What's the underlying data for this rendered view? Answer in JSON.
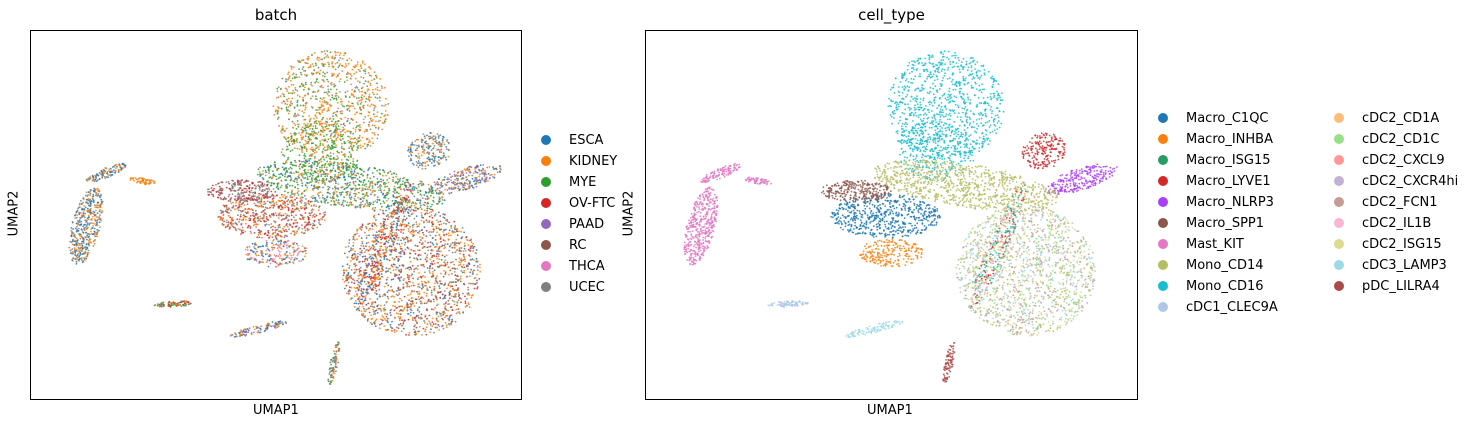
{
  "chart_data": [
    {
      "type": "scatter",
      "title": "batch",
      "xlabel": "UMAP1",
      "ylabel": "UMAP2",
      "xticks": [],
      "yticks": [],
      "grid": false,
      "legend_placement": "right",
      "series": [
        {
          "name": "ESCA",
          "color": "#1f77b4"
        },
        {
          "name": "KIDNEY",
          "color": "#ff7f0e"
        },
        {
          "name": "MYE",
          "color": "#2ca02c"
        },
        {
          "name": "OV-FTC",
          "color": "#d62728"
        },
        {
          "name": "PAAD",
          "color": "#9467bd"
        },
        {
          "name": "RC",
          "color": "#8c564b"
        },
        {
          "name": "THCA",
          "color": "#e377c2"
        },
        {
          "name": "UCEC",
          "color": "#7f7f7f"
        }
      ]
    },
    {
      "type": "scatter",
      "title": "cell_type",
      "xlabel": "UMAP1",
      "ylabel": "UMAP2",
      "xticks": [],
      "yticks": [],
      "grid": false,
      "legend_placement": "right",
      "series": [
        {
          "name": "Macro_C1QC",
          "color": "#1f77b4"
        },
        {
          "name": "Macro_INHBA",
          "color": "#ff7f0e"
        },
        {
          "name": "Macro_ISG15",
          "color": "#279e68"
        },
        {
          "name": "Macro_LYVE1",
          "color": "#d62728"
        },
        {
          "name": "Macro_NLRP3",
          "color": "#aa40fc"
        },
        {
          "name": "Macro_SPP1",
          "color": "#8c564b"
        },
        {
          "name": "Mast_KIT",
          "color": "#e377c2"
        },
        {
          "name": "Mono_CD14",
          "color": "#b5bd61"
        },
        {
          "name": "Mono_CD16",
          "color": "#17becf"
        },
        {
          "name": "cDC1_CLEC9A",
          "color": "#aec7e8"
        },
        {
          "name": "cDC2_CD1A",
          "color": "#ffbb78"
        },
        {
          "name": "cDC2_CD1C",
          "color": "#98df8a"
        },
        {
          "name": "cDC2_CXCL9",
          "color": "#ff9896"
        },
        {
          "name": "cDC2_CXCR4hi",
          "color": "#c5b0d5"
        },
        {
          "name": "cDC2_FCN1",
          "color": "#c49c94"
        },
        {
          "name": "cDC2_IL1B",
          "color": "#f7b6d2"
        },
        {
          "name": "cDC2_ISG15",
          "color": "#dbdb8d"
        },
        {
          "name": "cDC3_LAMP3",
          "color": "#9edae5"
        },
        {
          "name": "pDC_LILRA4",
          "color": "#ad494a"
        }
      ]
    }
  ]
}
